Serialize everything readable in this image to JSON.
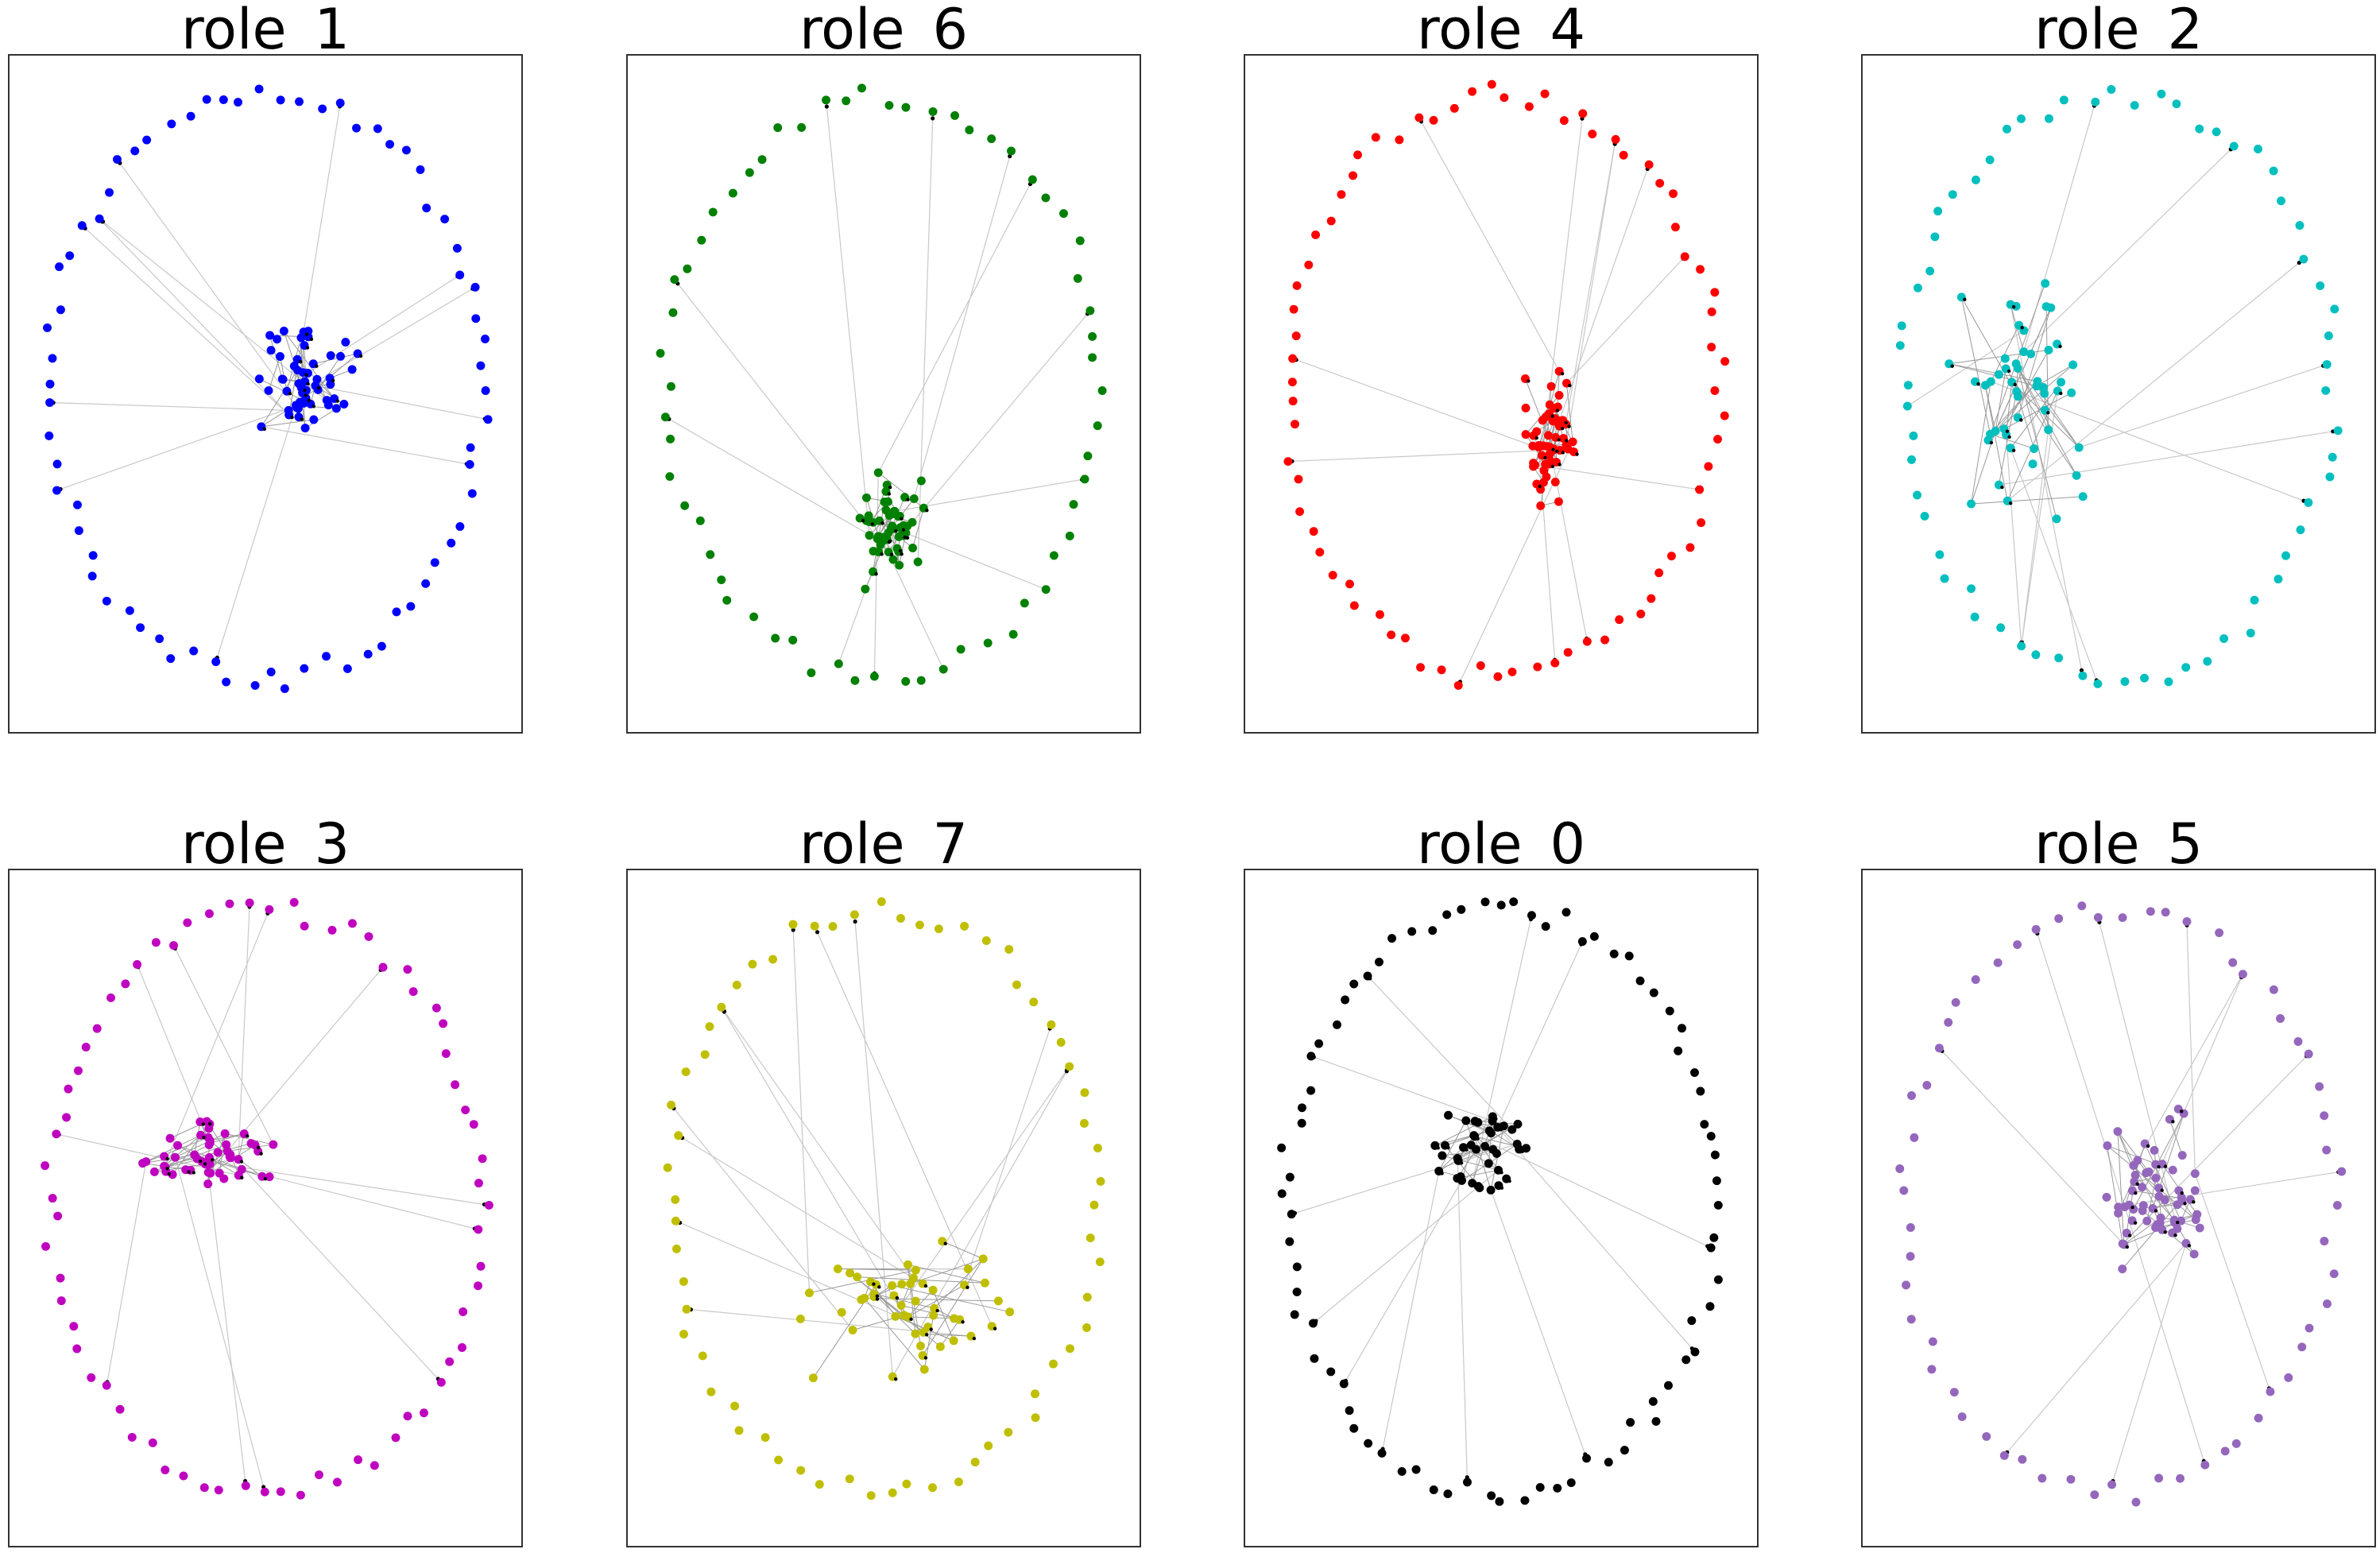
{
  "figure": {
    "panels": [
      {
        "title": "role_1",
        "color": "#0000ff"
      },
      {
        "title": "role_6",
        "color": "#008000"
      },
      {
        "title": "role_4",
        "color": "#ff0000"
      },
      {
        "title": "role_2",
        "color": "#00bfbf"
      },
      {
        "title": "role_3",
        "color": "#bf00bf"
      },
      {
        "title": "role_7",
        "color": "#bfbf00"
      },
      {
        "title": "role_0",
        "color": "#000000"
      },
      {
        "title": "role_5",
        "color": "#9467bd"
      }
    ],
    "edge_color": "#c8c8c8",
    "arrow_color": "#000000"
  }
}
